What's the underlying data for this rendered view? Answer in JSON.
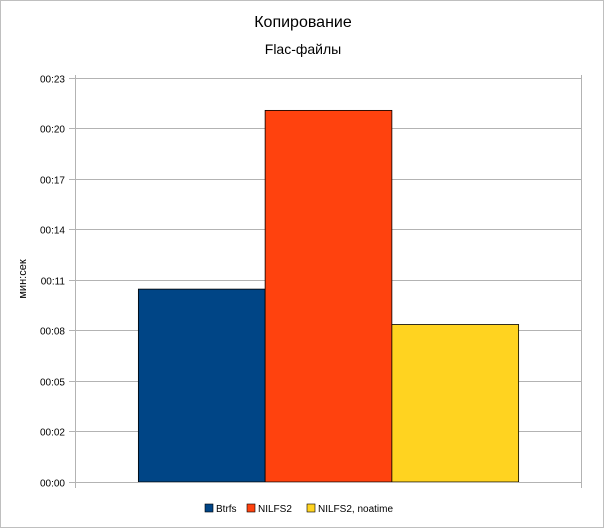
{
  "chart_data": {
    "type": "bar",
    "title": "Копирование",
    "subtitle": "Flac-файлы",
    "xlabel": "",
    "ylabel": "мин:сек",
    "y_unit": "seconds",
    "ylim": [
      0,
      23
    ],
    "yticks": [
      0,
      2.857,
      5.714,
      8.571,
      11.429,
      14.286,
      17.143,
      20.0,
      22.857
    ],
    "ytick_labels": [
      "00:00",
      "00:02",
      "00:05",
      "00:08",
      "00:11",
      "00:14",
      "00:17",
      "00:20",
      "00:23"
    ],
    "grid": true,
    "legend_position": "bottom",
    "categories": [
      ""
    ],
    "series": [
      {
        "name": "Btrfs",
        "values": [
          10.9
        ],
        "color": "#004586"
      },
      {
        "name": "NILFS2",
        "values": [
          21.0
        ],
        "color": "#ff420e"
      },
      {
        "name": "NILFS2, noatime",
        "values": [
          8.9
        ],
        "color": "#ffd320"
      }
    ]
  }
}
